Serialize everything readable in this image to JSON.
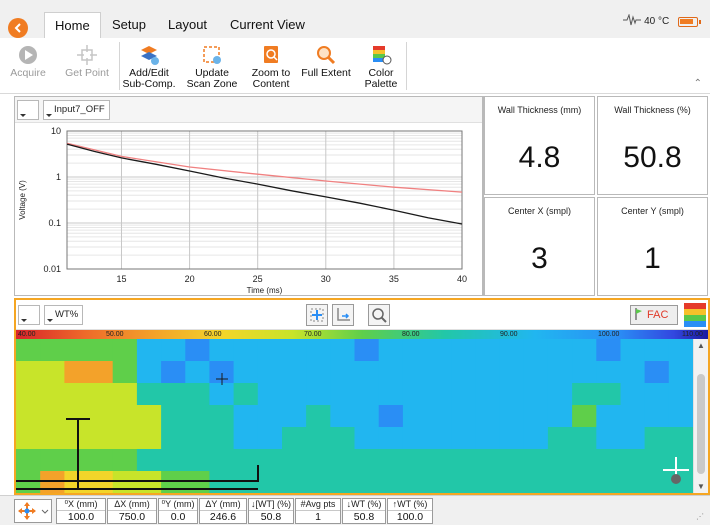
{
  "tabs": [
    "Home",
    "Setup",
    "Layout",
    "Current View"
  ],
  "status": {
    "temperature": "40 °C"
  },
  "ribbon": {
    "acquire": "Acquire",
    "get_point": "Get Point",
    "add_edit": [
      "Add/Edit",
      "Sub-Comp."
    ],
    "update": [
      "Update",
      "Scan Zone"
    ],
    "zoom": [
      "Zoom to",
      "Content"
    ],
    "full_extent": "Full Extent",
    "color": [
      "Color",
      "Palette"
    ]
  },
  "chart_panel": {
    "channel": "Input7_OFF"
  },
  "chart_data": {
    "type": "line",
    "xlabel": "Time (ms)",
    "ylabel": "Voltage (V)",
    "xlim": [
      11,
      40
    ],
    "ylim": [
      0.01,
      10
    ],
    "yscale": "log",
    "xticks": [
      15,
      20,
      25,
      30,
      35,
      40
    ],
    "yticks": [
      {
        "v": 10,
        "label": "10"
      },
      {
        "v": 1,
        "label": "1"
      },
      {
        "v": 0.1,
        "label": "0.1"
      },
      {
        "v": 0.01,
        "label": "0.01"
      }
    ],
    "grid": true,
    "series": [
      {
        "color": "#1a1a1a",
        "x": [
          11,
          13,
          15,
          17.5,
          20,
          22.5,
          25,
          27.5,
          30,
          32.5,
          35,
          37.5,
          40
        ],
        "y": [
          5.2,
          3.6,
          2.6,
          1.9,
          1.35,
          0.95,
          0.7,
          0.5,
          0.37,
          0.27,
          0.19,
          0.13,
          0.095
        ]
      },
      {
        "color": "#f08080",
        "x": [
          11,
          15,
          20,
          25,
          30,
          35,
          40
        ],
        "y": [
          5.4,
          2.8,
          1.65,
          1.15,
          0.82,
          0.6,
          0.47
        ]
      }
    ]
  },
  "stats": [
    {
      "label": "Wall Thickness (mm)",
      "value": "4.8"
    },
    {
      "label": "Wall Thickness (%)",
      "value": "50.8"
    },
    {
      "label": "Center X (smpl)",
      "value": "3"
    },
    {
      "label": "Center Y (smpl)",
      "value": "1"
    }
  ],
  "scan": {
    "layer": "WT%",
    "fac_label": "FAC",
    "colorbar_ticks": [
      "40.00",
      "50.00",
      "60.00",
      "70.00",
      "80.00",
      "90.00",
      "100.00",
      "110.00"
    ]
  },
  "statusbar": [
    {
      "label": "⁰X (mm)",
      "value": "100.0"
    },
    {
      "label": "ΔX (mm)",
      "value": "750.0"
    },
    {
      "label": "⁰Y (mm)",
      "value": "0.0"
    },
    {
      "label": "ΔY (mm)",
      "value": "246.6"
    },
    {
      "label": "↓[WT] (%)",
      "value": "50.8"
    },
    {
      "label": "#Avg pts",
      "value": "1"
    },
    {
      "label": "↓WT (%)",
      "value": "50.8"
    },
    {
      "label": "↑WT (%)",
      "value": "100.0"
    }
  ]
}
